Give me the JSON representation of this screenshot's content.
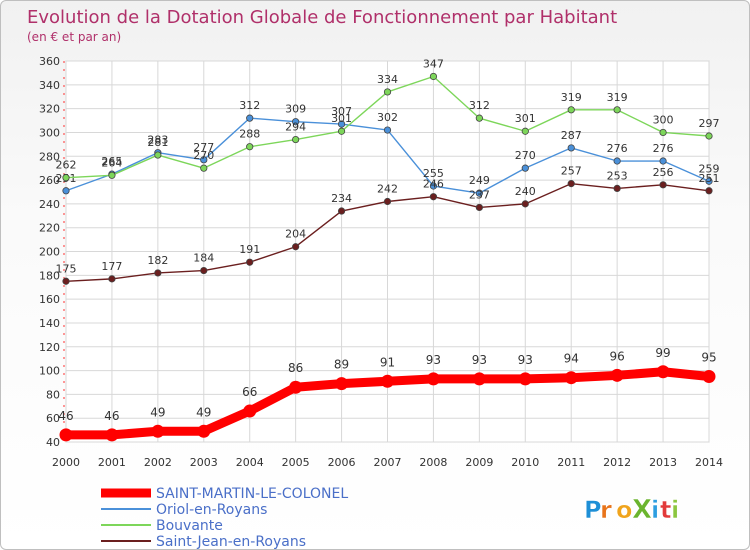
{
  "chart_data": {
    "type": "line",
    "title": "Evolution de la Dotation Globale de Fonctionnement par Habitant",
    "subtitle": "(en € et par an)",
    "xlabel": "",
    "ylabel": "",
    "ylim": [
      40,
      360
    ],
    "yticks": [
      40,
      60,
      80,
      100,
      120,
      140,
      160,
      180,
      200,
      220,
      240,
      260,
      280,
      300,
      320,
      340,
      360
    ],
    "grid": true,
    "legend_position": "bottom-left",
    "categories": [
      "2000",
      "2001",
      "2002",
      "2003",
      "2004",
      "2005",
      "2006",
      "2007",
      "2008",
      "2009",
      "2010",
      "2011",
      "2012",
      "2013",
      "2014"
    ],
    "series": [
      {
        "name": "SAINT-MARTIN-LE-COLONEL",
        "color": "#ff0000",
        "emphasis": true,
        "values": [
          46,
          46,
          49,
          49,
          66,
          86,
          89,
          91,
          93,
          93,
          93,
          94,
          96,
          99,
          95
        ]
      },
      {
        "name": "Oriol-en-Royans",
        "color": "#4a90d9",
        "emphasis": false,
        "values": [
          251,
          265,
          283,
          277,
          312,
          309,
          307,
          302,
          255,
          249,
          270,
          287,
          276,
          276,
          259
        ]
      },
      {
        "name": "Bouvante",
        "color": "#7dd65a",
        "emphasis": false,
        "values": [
          262,
          264,
          281,
          270,
          288,
          294,
          301,
          334,
          347,
          312,
          301,
          319,
          319,
          300,
          297
        ]
      },
      {
        "name": "Saint-Jean-en-Royans",
        "color": "#6b1f1f",
        "emphasis": false,
        "values": [
          175,
          177,
          182,
          184,
          191,
          204,
          234,
          242,
          246,
          237,
          240,
          257,
          253,
          256,
          251
        ]
      }
    ]
  },
  "logo": {
    "text": "ProXiti",
    "letters": [
      "P",
      "r",
      "o",
      "X",
      "i",
      "t",
      "i"
    ]
  },
  "colors": {
    "title": "#b0306a",
    "axis_text": "#333333",
    "grid": "#d8d8d8",
    "label": "#333333"
  }
}
